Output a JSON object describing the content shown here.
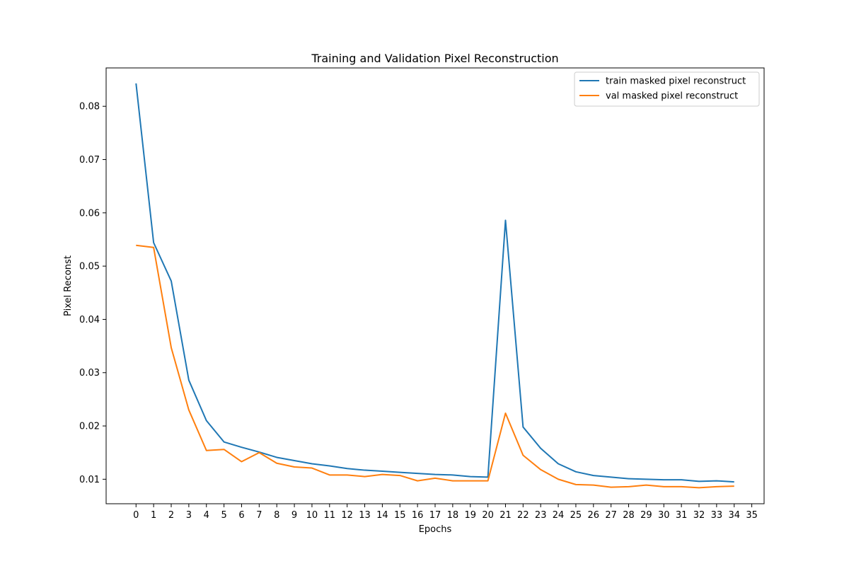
{
  "chart_data": {
    "type": "line",
    "title": "Training and Validation Pixel Reconstruction",
    "xlabel": "Epochs",
    "ylabel": "Pixel Reconst",
    "x": [
      0,
      1,
      2,
      3,
      4,
      5,
      6,
      7,
      8,
      9,
      10,
      11,
      12,
      13,
      14,
      15,
      16,
      17,
      18,
      19,
      20,
      21,
      22,
      23,
      24,
      25,
      26,
      27,
      28,
      29,
      30,
      31,
      32,
      33,
      34
    ],
    "x_ticks": [
      0,
      1,
      2,
      3,
      4,
      5,
      6,
      7,
      8,
      9,
      10,
      11,
      12,
      13,
      14,
      15,
      16,
      17,
      18,
      19,
      20,
      21,
      22,
      23,
      24,
      25,
      26,
      27,
      28,
      29,
      30,
      31,
      32,
      33,
      34,
      35
    ],
    "y_ticks": [
      0.01,
      0.02,
      0.03,
      0.04,
      0.05,
      0.06,
      0.07,
      0.08
    ],
    "y_tick_labels": [
      "0.01",
      "0.02",
      "0.03",
      "0.04",
      "0.05",
      "0.06",
      "0.07",
      "0.08"
    ],
    "xlim": [
      -1.7,
      35.7
    ],
    "ylim": [
      0.0054,
      0.0872
    ],
    "grid": false,
    "legend_position": "top-right",
    "series": [
      {
        "name": "train masked pixel reconstruct",
        "color": "#1f77b4",
        "values": [
          0.0843,
          0.0544,
          0.0472,
          0.0286,
          0.021,
          0.017,
          0.016,
          0.0151,
          0.0141,
          0.0135,
          0.0129,
          0.0125,
          0.012,
          0.0117,
          0.0115,
          0.0113,
          0.0111,
          0.0109,
          0.0108,
          0.0105,
          0.0104,
          0.0586,
          0.0198,
          0.0158,
          0.0129,
          0.0114,
          0.0107,
          0.0104,
          0.0101,
          0.01,
          0.0099,
          0.0099,
          0.0096,
          0.0097,
          0.0095
        ]
      },
      {
        "name": "val masked pixel reconstruct",
        "color": "#ff7f0e",
        "values": [
          0.0539,
          0.0535,
          0.0347,
          0.023,
          0.0154,
          0.0156,
          0.0133,
          0.015,
          0.013,
          0.0123,
          0.0121,
          0.0108,
          0.0108,
          0.0105,
          0.0109,
          0.0107,
          0.0097,
          0.0102,
          0.0097,
          0.0097,
          0.0097,
          0.0224,
          0.0145,
          0.0118,
          0.01,
          0.009,
          0.0089,
          0.0085,
          0.0086,
          0.0089,
          0.0086,
          0.0086,
          0.0084,
          0.0086,
          0.0087
        ]
      }
    ]
  }
}
